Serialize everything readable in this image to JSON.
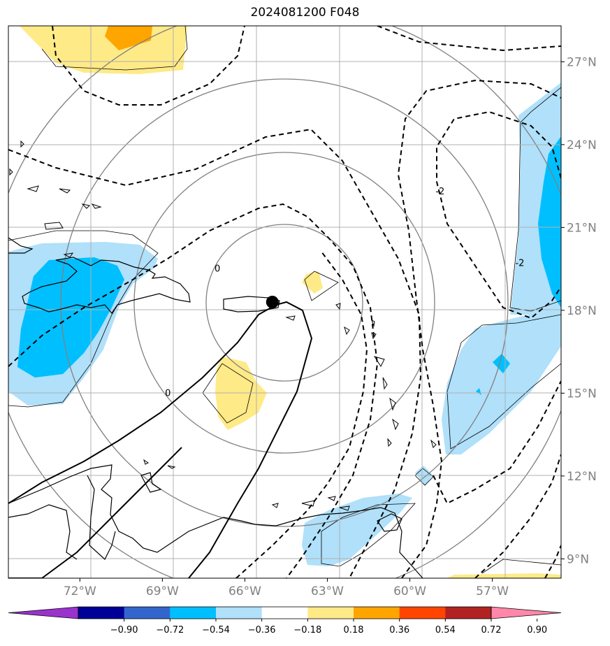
{
  "title": "2024081200 F048",
  "chart_data": {
    "type": "map-contour",
    "title": "2024081200 F048",
    "lon_ticks": [
      {
        "value": -72,
        "label": "72°W"
      },
      {
        "value": -69,
        "label": "69°W"
      },
      {
        "value": -66,
        "label": "66°W"
      },
      {
        "value": -63,
        "label": "63°W"
      },
      {
        "value": -60,
        "label": "60°W"
      },
      {
        "value": -57,
        "label": "57°W"
      }
    ],
    "lat_ticks": [
      {
        "value": 9,
        "label": "9°N"
      },
      {
        "value": 12,
        "label": "12°N"
      },
      {
        "value": 15,
        "label": "15°N"
      },
      {
        "value": 18,
        "label": "18°N"
      },
      {
        "value": 21,
        "label": "21°N"
      },
      {
        "value": 24,
        "label": "24°N"
      },
      {
        "value": 27,
        "label": "27°N"
      }
    ],
    "lon_range": [
      -74.6,
      -54.5
    ],
    "lat_range": [
      8.3,
      28.3
    ],
    "grid": true,
    "center_marker": {
      "lon": -65.0,
      "lat": 18.3
    },
    "contour_labels": [
      {
        "text": "0",
        "lon": -67.0,
        "lat": 19.4
      },
      {
        "text": "0",
        "lon": -68.8,
        "lat": 14.9
      },
      {
        "text": "-2",
        "lon": -58.9,
        "lat": 22.2
      },
      {
        "text": "-2",
        "lon": -56.0,
        "lat": 19.6
      }
    ],
    "colorbar": {
      "labels": [
        "−0.90",
        "−0.72",
        "−0.54",
        "−0.36",
        "−0.18",
        "0.18",
        "0.36",
        "0.54",
        "0.72",
        "0.90"
      ],
      "colors": [
        "#9933cc",
        "#000099",
        "#3366cc",
        "#00bfff",
        "#b0e0fa",
        "#ffffff",
        "#ffea88",
        "#ffa500",
        "#ff4500",
        "#b22222",
        "#ff88aa"
      ]
    },
    "colors": {
      "light_blue": "#b0e0fa",
      "deep_sky_blue": "#00bfff",
      "light_yellow": "#ffea88",
      "orange": "#ffa500"
    }
  }
}
